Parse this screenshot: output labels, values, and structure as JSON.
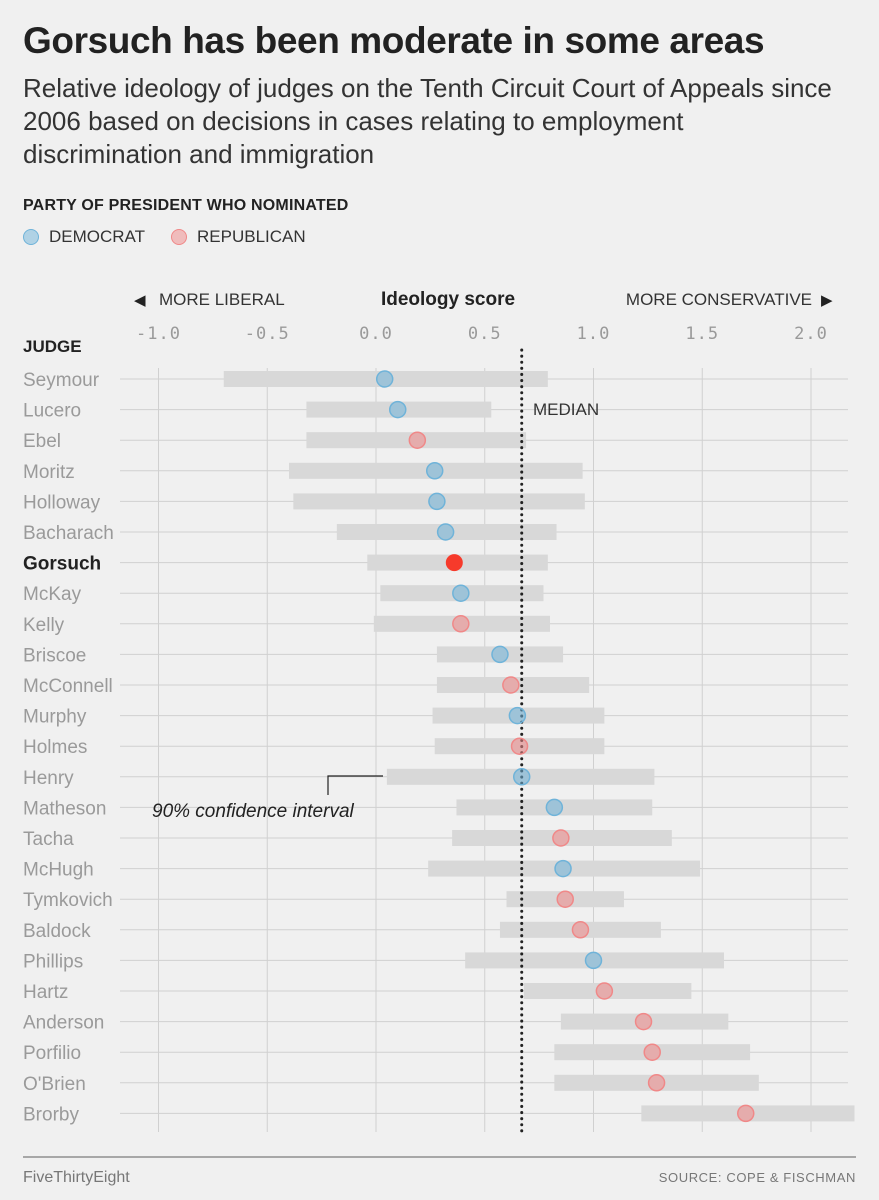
{
  "header": {
    "title": "Gorsuch has been moderate in some areas",
    "subtitle": "Relative ideology of judges on the Tenth Circuit Court of Appeals since 2006 based on decisions in cases relating to employment discrimination and immigration"
  },
  "legend": {
    "title": "PARTY OF PRESIDENT WHO NOMINATED",
    "items": [
      {
        "label": "DEMOCRAT",
        "color": "#6fb3d9"
      },
      {
        "label": "REPUBLICAN",
        "color": "#f08888"
      }
    ]
  },
  "axis": {
    "left_label": "MORE LIBERAL",
    "center_label": "Ideology score",
    "right_label": "MORE CONSERVATIVE",
    "left_arrow": "◀",
    "right_arrow": "▶",
    "judge_header": "JUDGE",
    "tick_labels": [
      "-1.0",
      "-0.5",
      "0.0",
      "0.5",
      "1.0",
      "1.5",
      "2.0"
    ]
  },
  "annotations": {
    "median_label": "MEDIAN",
    "ci_label": "90% confidence interval"
  },
  "chart_data": {
    "type": "scatter",
    "title": "Gorsuch has been moderate in some areas",
    "xlabel": "Ideology score",
    "ylabel": "JUDGE",
    "xlim": [
      -1.1,
      2.2
    ],
    "xticks": [
      -1.0,
      -0.5,
      0.0,
      0.5,
      1.0,
      1.5,
      2.0
    ],
    "grid": true,
    "legend_position": "top-left",
    "median": 0.67,
    "highlight": "Gorsuch",
    "colors": {
      "Democrat": "#6fb3d9",
      "Republican": "#f08888",
      "highlight": "#f63a2b",
      "interval": "#d8d8d8"
    },
    "series": [
      {
        "name": "DEMOCRAT",
        "party": "Democrat"
      },
      {
        "name": "REPUBLICAN",
        "party": "Republican"
      }
    ],
    "judges": [
      {
        "name": "Seymour",
        "party": "Democrat",
        "score": 0.04,
        "low": -0.7,
        "high": 0.79
      },
      {
        "name": "Lucero",
        "party": "Democrat",
        "score": 0.1,
        "low": -0.32,
        "high": 0.53
      },
      {
        "name": "Ebel",
        "party": "Republican",
        "score": 0.19,
        "low": -0.32,
        "high": 0.69
      },
      {
        "name": "Moritz",
        "party": "Democrat",
        "score": 0.27,
        "low": -0.4,
        "high": 0.95
      },
      {
        "name": "Holloway",
        "party": "Democrat",
        "score": 0.28,
        "low": -0.38,
        "high": 0.96
      },
      {
        "name": "Bacharach",
        "party": "Democrat",
        "score": 0.32,
        "low": -0.18,
        "high": 0.83
      },
      {
        "name": "Gorsuch",
        "party": "Republican",
        "score": 0.36,
        "low": -0.04,
        "high": 0.79
      },
      {
        "name": "McKay",
        "party": "Democrat",
        "score": 0.39,
        "low": 0.02,
        "high": 0.77
      },
      {
        "name": "Kelly",
        "party": "Republican",
        "score": 0.39,
        "low": -0.01,
        "high": 0.8
      },
      {
        "name": "Briscoe",
        "party": "Democrat",
        "score": 0.57,
        "low": 0.28,
        "high": 0.86
      },
      {
        "name": "McConnell",
        "party": "Republican",
        "score": 0.62,
        "low": 0.28,
        "high": 0.98
      },
      {
        "name": "Murphy",
        "party": "Democrat",
        "score": 0.65,
        "low": 0.26,
        "high": 1.05
      },
      {
        "name": "Holmes",
        "party": "Republican",
        "score": 0.66,
        "low": 0.27,
        "high": 1.05
      },
      {
        "name": "Henry",
        "party": "Democrat",
        "score": 0.67,
        "low": 0.05,
        "high": 1.28
      },
      {
        "name": "Matheson",
        "party": "Democrat",
        "score": 0.82,
        "low": 0.37,
        "high": 1.27
      },
      {
        "name": "Tacha",
        "party": "Republican",
        "score": 0.85,
        "low": 0.35,
        "high": 1.36
      },
      {
        "name": "McHugh",
        "party": "Democrat",
        "score": 0.86,
        "low": 0.24,
        "high": 1.49
      },
      {
        "name": "Tymkovich",
        "party": "Republican",
        "score": 0.87,
        "low": 0.6,
        "high": 1.14
      },
      {
        "name": "Baldock",
        "party": "Republican",
        "score": 0.94,
        "low": 0.57,
        "high": 1.31
      },
      {
        "name": "Phillips",
        "party": "Democrat",
        "score": 1.0,
        "low": 0.41,
        "high": 1.6
      },
      {
        "name": "Hartz",
        "party": "Republican",
        "score": 1.05,
        "low": 0.68,
        "high": 1.45
      },
      {
        "name": "Anderson",
        "party": "Republican",
        "score": 1.23,
        "low": 0.85,
        "high": 1.62
      },
      {
        "name": "Porfilio",
        "party": "Republican",
        "score": 1.27,
        "low": 0.82,
        "high": 1.72
      },
      {
        "name": "O'Brien",
        "party": "Republican",
        "score": 1.29,
        "low": 0.82,
        "high": 1.76
      },
      {
        "name": "Brorby",
        "party": "Republican",
        "score": 1.7,
        "low": 1.22,
        "high": 2.2
      }
    ]
  },
  "footer": {
    "brand": "FiveThirtyEight",
    "source": "SOURCE: COPE & FISCHMAN"
  }
}
